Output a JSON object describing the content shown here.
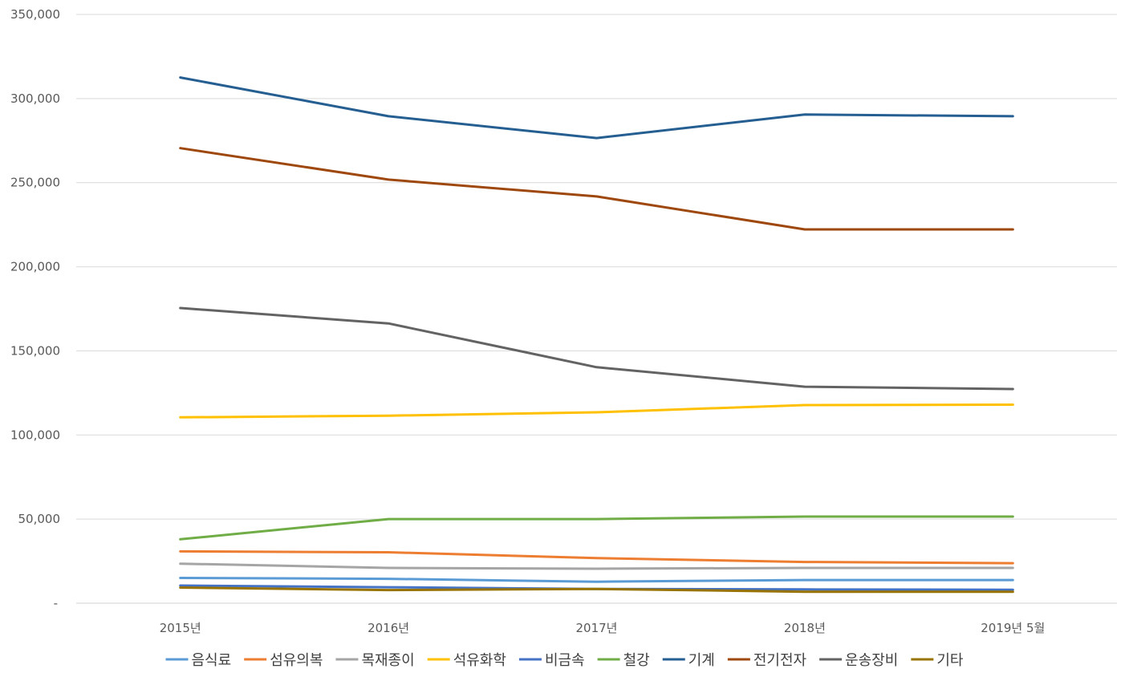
{
  "chart_data": {
    "type": "line",
    "title": "",
    "xlabel": "",
    "ylabel": "",
    "categories": [
      "2015년",
      "2016년",
      "2017년",
      "2018년",
      "2019년 5월"
    ],
    "ylim": [
      0,
      350000
    ],
    "y_ticks": [
      0,
      50000,
      100000,
      150000,
      200000,
      250000,
      300000,
      350000
    ],
    "y_tick_labels": [
      "-",
      "50,000",
      "100,000",
      "150,000",
      "200,000",
      "250,000",
      "300,000",
      "350,000"
    ],
    "grid": "horizontal",
    "legend_position": "bottom",
    "series": [
      {
        "name": "음식료",
        "color": "#5B9BD5",
        "values": [
          15000,
          14500,
          12800,
          13800,
          13800
        ]
      },
      {
        "name": "섬유의복",
        "color": "#ED7D31",
        "values": [
          30800,
          30300,
          26800,
          24500,
          23800
        ]
      },
      {
        "name": "목재종이",
        "color": "#A5A5A5",
        "values": [
          23500,
          21000,
          20500,
          21000,
          21000
        ]
      },
      {
        "name": "석유화학",
        "color": "#FFC000",
        "values": [
          110500,
          111500,
          113500,
          117800,
          118000
        ]
      },
      {
        "name": "비금속",
        "color": "#4472C4",
        "values": [
          10500,
          9500,
          8500,
          8200,
          8000
        ]
      },
      {
        "name": "철강",
        "color": "#70AD47",
        "values": [
          38000,
          50000,
          50000,
          51500,
          51500
        ]
      },
      {
        "name": "기계",
        "color": "#255E91",
        "values": [
          312500,
          289500,
          276500,
          290500,
          289500
        ]
      },
      {
        "name": "전기전자",
        "color": "#9E480E",
        "values": [
          270500,
          251800,
          241800,
          222200,
          222200
        ]
      },
      {
        "name": "운송장비",
        "color": "#636363",
        "values": [
          175500,
          166300,
          140300,
          128700,
          127300
        ]
      },
      {
        "name": "기타",
        "color": "#997300",
        "values": [
          9300,
          7800,
          8500,
          6800,
          6800
        ]
      }
    ]
  }
}
